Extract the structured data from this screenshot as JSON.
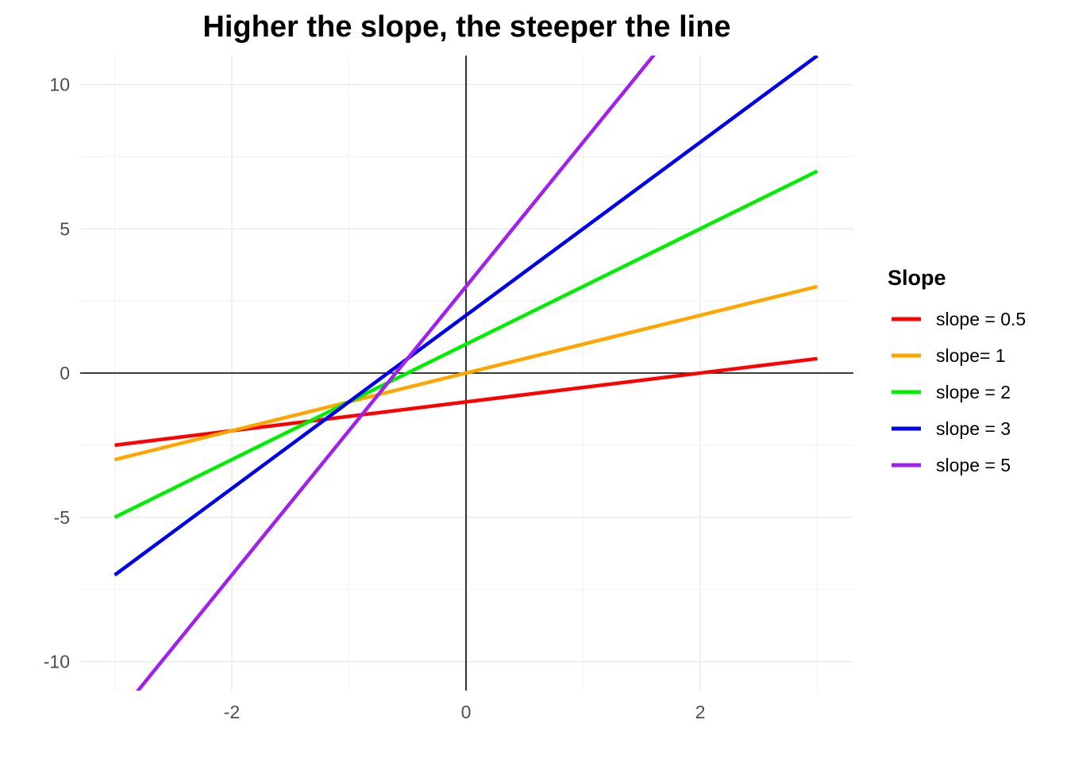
{
  "chart_data": {
    "type": "line",
    "title": "Higher the slope, the steeper the line",
    "xlabel": "",
    "ylabel": "",
    "xlim": [
      -3,
      3
    ],
    "ylim": [
      -11,
      11
    ],
    "x_ticks": [
      -2,
      0,
      2
    ],
    "y_ticks": [
      -10,
      -5,
      0,
      5,
      10
    ],
    "x_tick_labels": [
      "-2",
      "0",
      "2"
    ],
    "y_tick_labels": [
      "-10",
      "-5",
      "0",
      "5",
      "10"
    ],
    "grid": true,
    "reference_lines": {
      "x": 0,
      "y": 0
    },
    "legend": {
      "title": "Slope",
      "placement": "right"
    },
    "series": [
      {
        "name": "slope = 0.5",
        "color": "#ff0000",
        "x": [
          -3,
          3
        ],
        "y": [
          -2.5,
          0.5
        ]
      },
      {
        "name": "slope= 1",
        "color": "#ffa500",
        "x": [
          -3,
          3
        ],
        "y": [
          -3,
          3
        ]
      },
      {
        "name": "slope = 2",
        "color": "#00ee00",
        "x": [
          -3,
          3
        ],
        "y": [
          -5,
          7
        ]
      },
      {
        "name": "slope = 3",
        "color": "#0000ee",
        "x": [
          -3,
          3
        ],
        "y": [
          -7,
          11
        ]
      },
      {
        "name": "slope = 5",
        "color": "#a020f0",
        "x": [
          -3,
          3
        ],
        "y": [
          -12,
          18
        ]
      }
    ]
  }
}
